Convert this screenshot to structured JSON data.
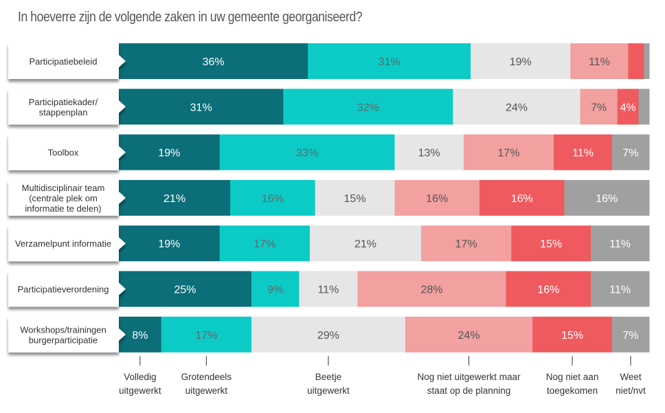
{
  "chart_data": {
    "type": "bar",
    "orientation": "horizontal",
    "stacked": true,
    "title": "In hoeverre zijn de volgende zaken in uw gemeente georganiseerd?",
    "categories": [
      "Participatiebeleid",
      "Participatiekader/\nstappenplan",
      "Toolbox",
      "Multidisciplinair team\n(centrale plek om\ninformatie te delen)",
      "Verzamelpunt informatie",
      "Participatieverordening",
      "Workshops/trainingen\nburgerparticipatie"
    ],
    "series": [
      {
        "name": "Volledig\nuitgewerkt",
        "color": "#0b6e79",
        "text_color": "#ffffff",
        "values": [
          36,
          31,
          19,
          21,
          19,
          25,
          8
        ],
        "labels": [
          "36%",
          "31%",
          "19%",
          "21%",
          "19%",
          "25%",
          "8%"
        ]
      },
      {
        "name": "Grotendeels\nuitgewerkt",
        "color": "#0ccbc6",
        "text_color": "#5a6a6a",
        "values": [
          31,
          32,
          33,
          16,
          17,
          9,
          17
        ],
        "labels": [
          "31%",
          "32%",
          "33%",
          "16%",
          "17%",
          "9%",
          "17%"
        ]
      },
      {
        "name": "Beetje\nuitgewerkt",
        "color": "#e6e6e6",
        "text_color": "#555555",
        "values": [
          19,
          24,
          13,
          15,
          21,
          11,
          29
        ],
        "labels": [
          "19%",
          "24%",
          "13%",
          "15%",
          "21%",
          "11%",
          "29%"
        ]
      },
      {
        "name": "Nog niet uitgewerkt maar\nstaat op de planning",
        "color": "#f2a0a0",
        "text_color": "#555555",
        "values": [
          11,
          7,
          17,
          16,
          17,
          28,
          24
        ],
        "labels": [
          "11%",
          "7%",
          "17%",
          "16%",
          "17%",
          "28%",
          "24%"
        ]
      },
      {
        "name": "Nog niet aan\ntoegekomen",
        "color": "#ef5a5f",
        "text_color": "#ffffff",
        "values": [
          3,
          4,
          11,
          16,
          15,
          16,
          15
        ],
        "labels": [
          "",
          "4%",
          "11%",
          "16%",
          "15%",
          "16%",
          "15%"
        ]
      },
      {
        "name": "Weet\nniet/nvt",
        "color": "#a0a0a0",
        "text_color": "#ffffff",
        "values": [
          1,
          2,
          7,
          16,
          11,
          11,
          7
        ],
        "labels": [
          "",
          "",
          "7%",
          "16%",
          "11%",
          "11%",
          "7%"
        ]
      }
    ],
    "xlim": [
      0,
      100
    ],
    "grid": false,
    "legend": "bottom"
  }
}
